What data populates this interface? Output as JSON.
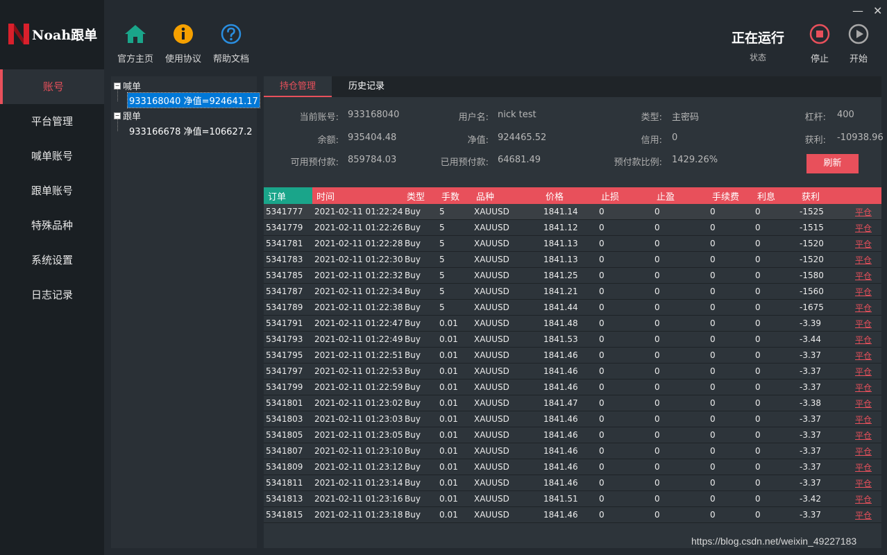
{
  "app": {
    "logo_text": "Noah跟单",
    "window_controls": {
      "minimize": "—",
      "close": "✕"
    }
  },
  "sidebar": {
    "items": [
      {
        "label": "账号",
        "active": true
      },
      {
        "label": "平台管理"
      },
      {
        "label": "喊单账号"
      },
      {
        "label": "跟单账号"
      },
      {
        "label": "特殊品种"
      },
      {
        "label": "系统设置"
      },
      {
        "label": "日志记录"
      }
    ]
  },
  "toolbar": {
    "home_label": "官方主页",
    "agreement_label": "使用协议",
    "help_label": "帮助文档",
    "status_title": "正在运行",
    "status_label": "状态",
    "stop_label": "停止",
    "start_label": "开始"
  },
  "tree": {
    "group1": "喊单",
    "group1_child": "933168040 净值=924641.17",
    "group2": "跟单",
    "group2_child": "933166678 净值=106627.2"
  },
  "tabs": {
    "positions": "持仓管理",
    "history": "历史记录"
  },
  "account": {
    "current_account_label": "当前账号:",
    "current_account": "933168040",
    "username_label": "用户名:",
    "username": "nick test",
    "type_label": "类型:",
    "type": "主密码",
    "leverage_label": "杠杆:",
    "leverage": "400",
    "balance_label": "余额:",
    "balance": "935404.48",
    "equity_label": "净值:",
    "equity": "924465.52",
    "credit_label": "信用:",
    "credit": "0",
    "profit_label": "获利:",
    "profit": "-10938.96",
    "free_margin_label": "可用预付款:",
    "free_margin": "859784.03",
    "used_margin_label": "已用预付款:",
    "used_margin": "64681.49",
    "margin_ratio_label": "预付款比例:",
    "margin_ratio": "1429.26%",
    "refresh_label": "刷新"
  },
  "orders": {
    "columns": [
      "订单",
      "时间",
      "类型",
      "手数",
      "品种",
      "价格",
      "止损",
      "止盈",
      "手续费",
      "利息",
      "获利",
      ""
    ],
    "close_label": "平仓",
    "rows": [
      [
        "5341777",
        "2021-02-11 01:22:24",
        "Buy",
        "5",
        "XAUUSD",
        "1841.14",
        "0",
        "0",
        "0",
        "0",
        "-1525"
      ],
      [
        "5341779",
        "2021-02-11 01:22:26",
        "Buy",
        "5",
        "XAUUSD",
        "1841.12",
        "0",
        "0",
        "0",
        "0",
        "-1515"
      ],
      [
        "5341781",
        "2021-02-11 01:22:28",
        "Buy",
        "5",
        "XAUUSD",
        "1841.13",
        "0",
        "0",
        "0",
        "0",
        "-1520"
      ],
      [
        "5341783",
        "2021-02-11 01:22:30",
        "Buy",
        "5",
        "XAUUSD",
        "1841.13",
        "0",
        "0",
        "0",
        "0",
        "-1520"
      ],
      [
        "5341785",
        "2021-02-11 01:22:32",
        "Buy",
        "5",
        "XAUUSD",
        "1841.25",
        "0",
        "0",
        "0",
        "0",
        "-1580"
      ],
      [
        "5341787",
        "2021-02-11 01:22:34",
        "Buy",
        "5",
        "XAUUSD",
        "1841.21",
        "0",
        "0",
        "0",
        "0",
        "-1560"
      ],
      [
        "5341789",
        "2021-02-11 01:22:38",
        "Buy",
        "5",
        "XAUUSD",
        "1841.44",
        "0",
        "0",
        "0",
        "0",
        "-1675"
      ],
      [
        "5341791",
        "2021-02-11 01:22:47",
        "Buy",
        "0.01",
        "XAUUSD",
        "1841.48",
        "0",
        "0",
        "0",
        "0",
        "-3.39"
      ],
      [
        "5341793",
        "2021-02-11 01:22:49",
        "Buy",
        "0.01",
        "XAUUSD",
        "1841.53",
        "0",
        "0",
        "0",
        "0",
        "-3.44"
      ],
      [
        "5341795",
        "2021-02-11 01:22:51",
        "Buy",
        "0.01",
        "XAUUSD",
        "1841.46",
        "0",
        "0",
        "0",
        "0",
        "-3.37"
      ],
      [
        "5341797",
        "2021-02-11 01:22:53",
        "Buy",
        "0.01",
        "XAUUSD",
        "1841.46",
        "0",
        "0",
        "0",
        "0",
        "-3.37"
      ],
      [
        "5341799",
        "2021-02-11 01:22:59",
        "Buy",
        "0.01",
        "XAUUSD",
        "1841.46",
        "0",
        "0",
        "0",
        "0",
        "-3.37"
      ],
      [
        "5341801",
        "2021-02-11 01:23:02",
        "Buy",
        "0.01",
        "XAUUSD",
        "1841.47",
        "0",
        "0",
        "0",
        "0",
        "-3.38"
      ],
      [
        "5341803",
        "2021-02-11 01:23:03",
        "Buy",
        "0.01",
        "XAUUSD",
        "1841.46",
        "0",
        "0",
        "0",
        "0",
        "-3.37"
      ],
      [
        "5341805",
        "2021-02-11 01:23:05",
        "Buy",
        "0.01",
        "XAUUSD",
        "1841.46",
        "0",
        "0",
        "0",
        "0",
        "-3.37"
      ],
      [
        "5341807",
        "2021-02-11 01:23:10",
        "Buy",
        "0.01",
        "XAUUSD",
        "1841.46",
        "0",
        "0",
        "0",
        "0",
        "-3.37"
      ],
      [
        "5341809",
        "2021-02-11 01:23:12",
        "Buy",
        "0.01",
        "XAUUSD",
        "1841.46",
        "0",
        "0",
        "0",
        "0",
        "-3.37"
      ],
      [
        "5341811",
        "2021-02-11 01:23:14",
        "Buy",
        "0.01",
        "XAUUSD",
        "1841.46",
        "0",
        "0",
        "0",
        "0",
        "-3.37"
      ],
      [
        "5341813",
        "2021-02-11 01:23:16",
        "Buy",
        "0.01",
        "XAUUSD",
        "1841.51",
        "0",
        "0",
        "0",
        "0",
        "-3.42"
      ],
      [
        "5341815",
        "2021-02-11 01:23:18",
        "Buy",
        "0.01",
        "XAUUSD",
        "1841.46",
        "0",
        "0",
        "0",
        "0",
        "-3.37"
      ]
    ]
  },
  "watermark": "https://blog.csdn.net/weixin_49227183",
  "colors": {
    "accent": "#e8505b",
    "header_first_col": "#1aa58a",
    "selection": "#0078d7"
  }
}
